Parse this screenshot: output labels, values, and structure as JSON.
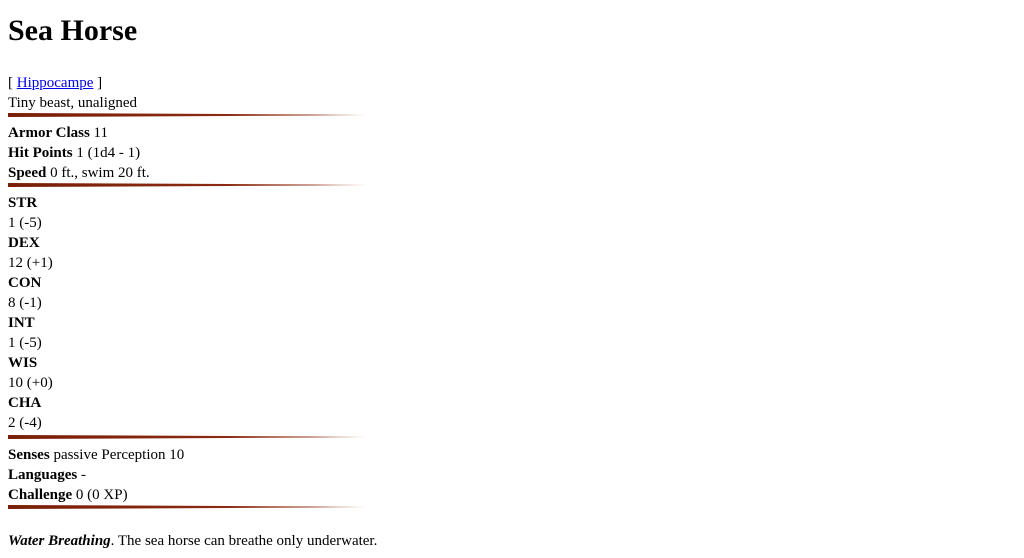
{
  "title": "Sea Horse",
  "see_also": {
    "open_bracket": "[",
    "link_text": "Hippocampe",
    "close_bracket": "]"
  },
  "type_line": "Tiny beast, unaligned",
  "defense": {
    "armor_class_label": "Armor Class",
    "armor_class_value": "11",
    "hit_points_label": "Hit Points",
    "hit_points_value": "1 (1d4 - 1)",
    "speed_label": "Speed",
    "speed_value": "0 ft., swim 20 ft."
  },
  "abilities": [
    {
      "name": "STR",
      "value": "1 (-5)"
    },
    {
      "name": "DEX",
      "value": "12 (+1)"
    },
    {
      "name": "CON",
      "value": "8 (-1)"
    },
    {
      "name": "INT",
      "value": "1 (-5)"
    },
    {
      "name": "WIS",
      "value": "10 (+0)"
    },
    {
      "name": "CHA",
      "value": "2 (-4)"
    }
  ],
  "details": {
    "senses_label": "Senses",
    "senses_value": "passive Perception 10",
    "languages_label": "Languages",
    "languages_value": "-",
    "challenge_label": "Challenge",
    "challenge_value": "0 (0 XP)"
  },
  "traits": [
    {
      "name": "Water Breathing",
      "text": ". The sea horse can breathe only underwater."
    }
  ],
  "colors": {
    "rule": "#7a1e07",
    "link": "#0000ee"
  }
}
